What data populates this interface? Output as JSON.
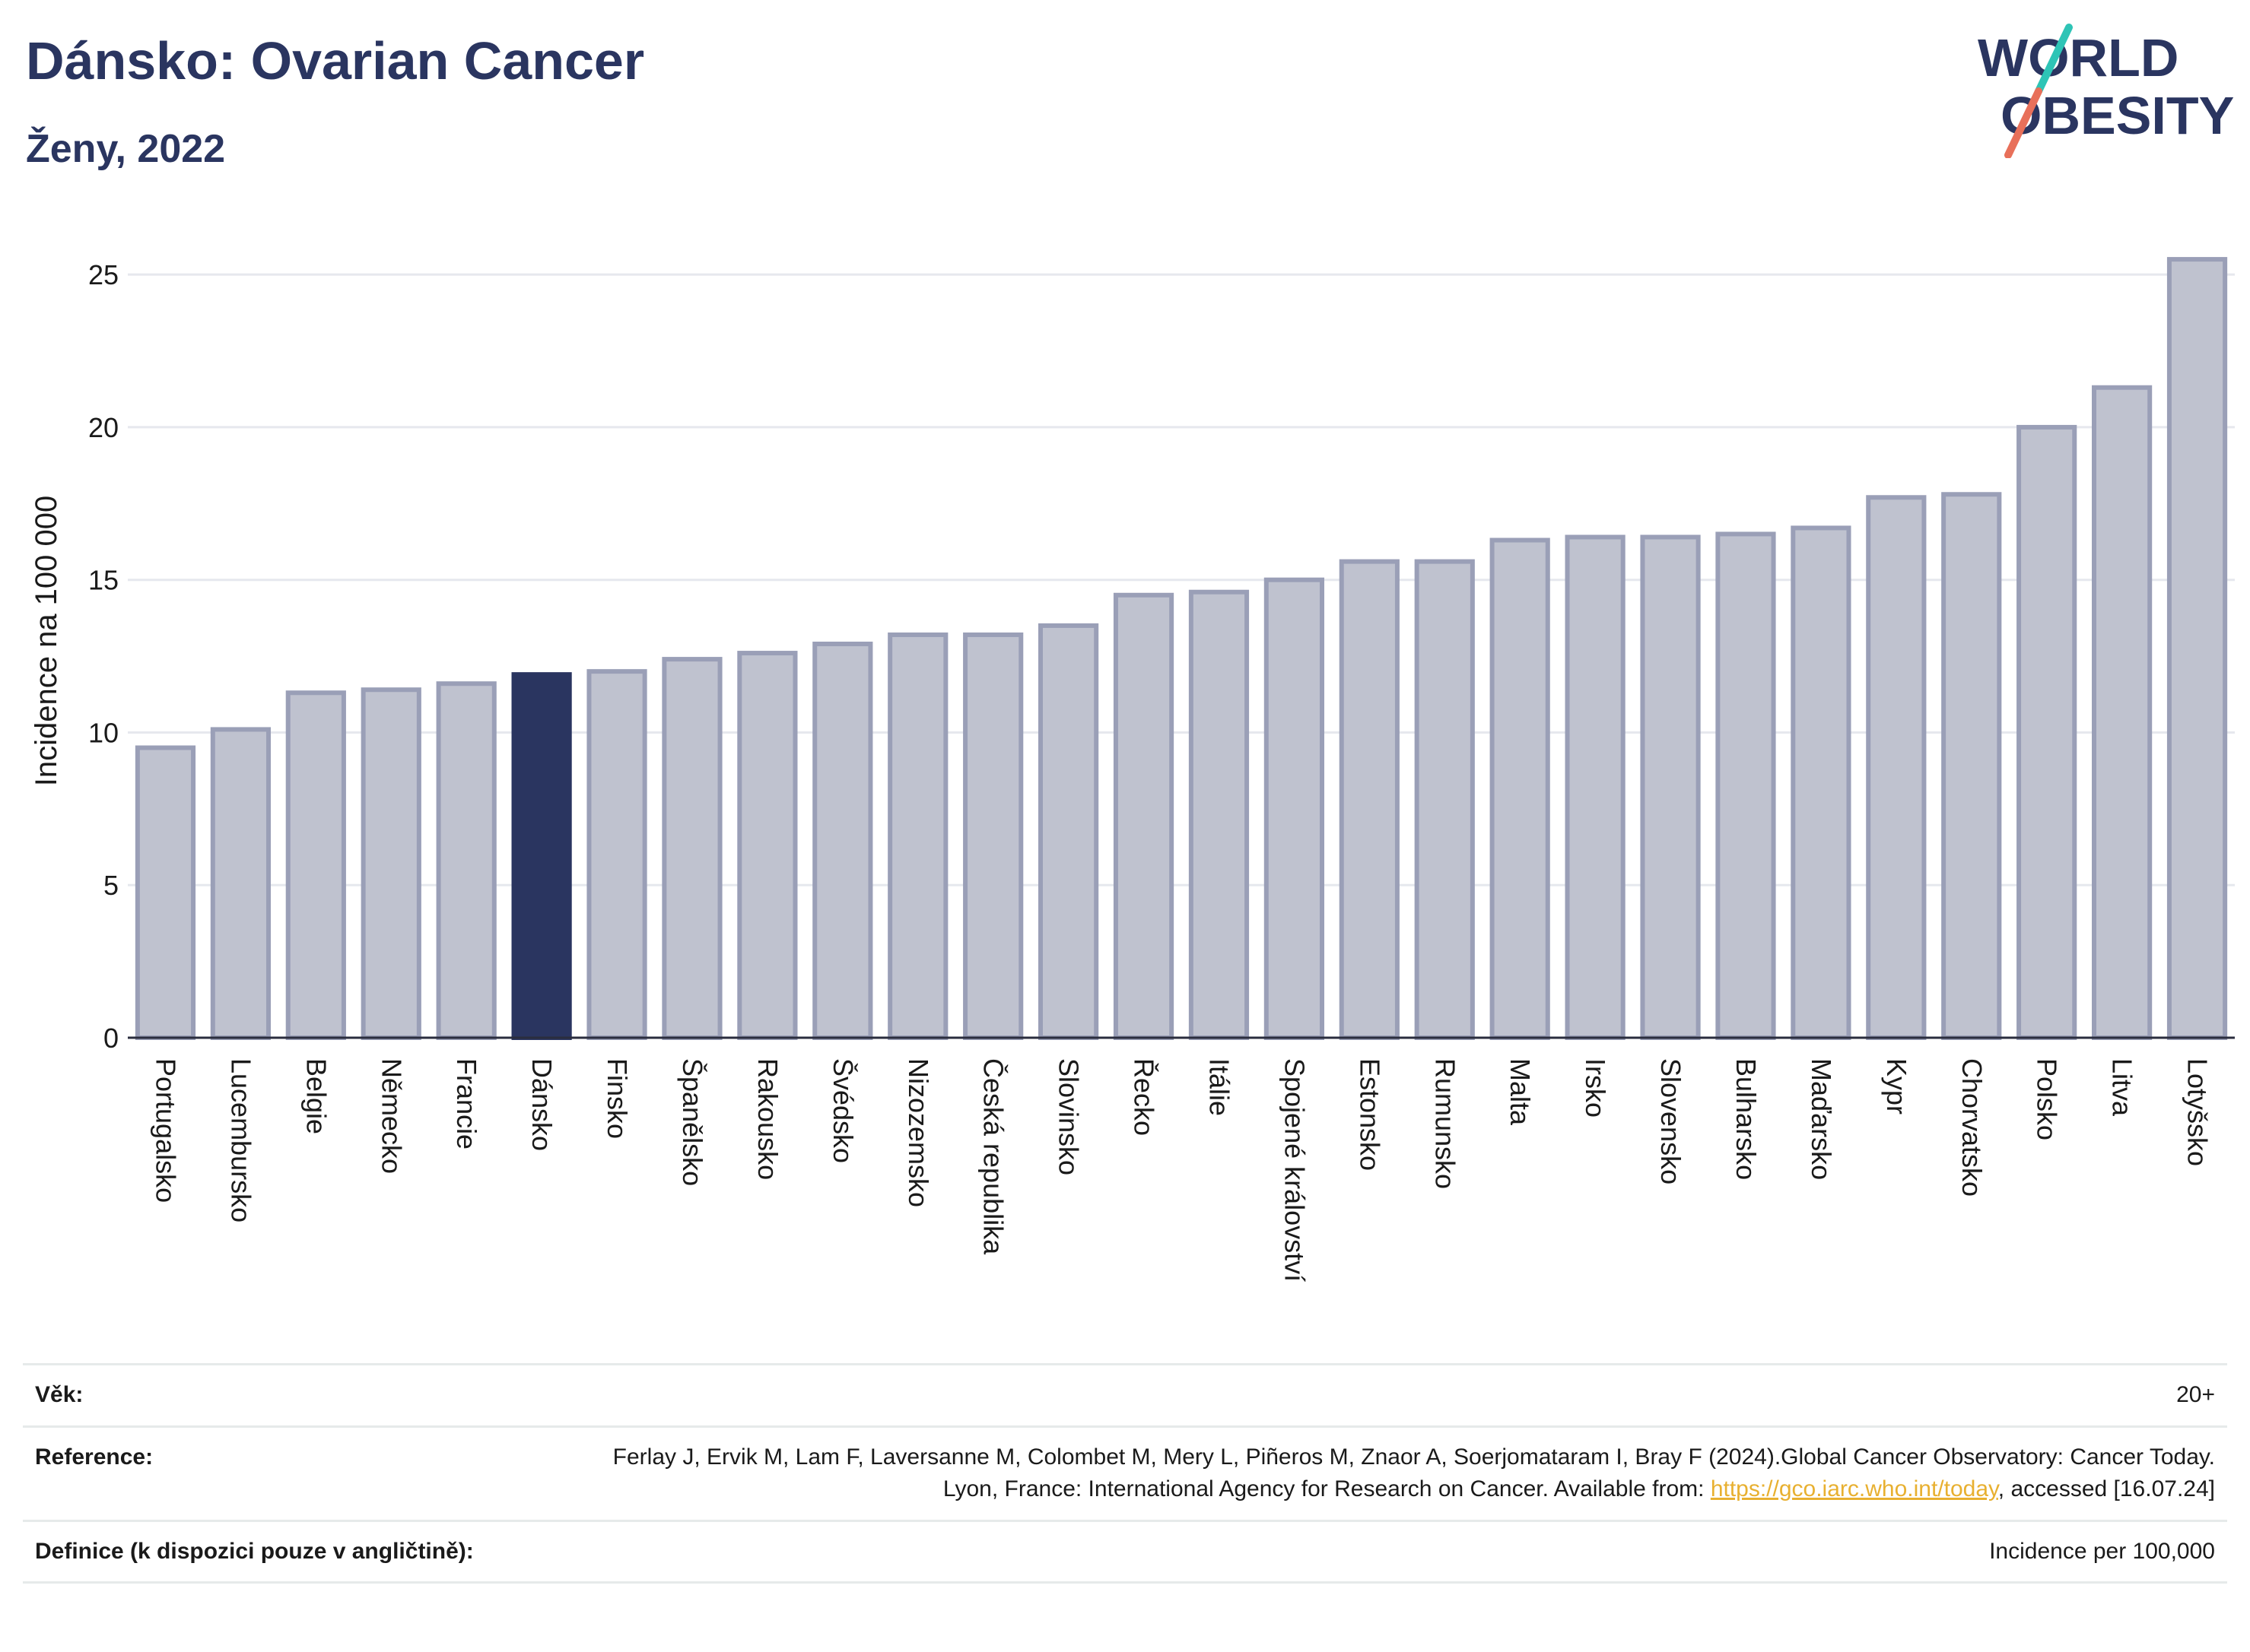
{
  "header": {
    "title": "Dánsko: Ovarian Cancer",
    "subtitle": "Ženy, 2022"
  },
  "logo": {
    "line1": "WORLD",
    "line2": "OBESITY",
    "colors": {
      "text": "#2a3560",
      "slash_top": "#2ec4b6",
      "slash_bottom": "#e8705a"
    }
  },
  "chart_data": {
    "type": "bar",
    "title": "Dánsko: Ovarian Cancer",
    "subtitle": "Ženy, 2022",
    "xlabel": "",
    "ylabel": "Incidence na 100 000",
    "ylim": [
      0,
      26
    ],
    "yticks": [
      0,
      5,
      10,
      15,
      20,
      25
    ],
    "grid": true,
    "highlight": "Dánsko",
    "colors": {
      "bar": "#bfc2cf",
      "bar_border": "#9a9fb7",
      "highlight": "#2a3560",
      "grid": "#e6e8ee"
    },
    "categories": [
      "Portugalsko",
      "Lucembursko",
      "Belgie",
      "Německo",
      "Francie",
      "Dánsko",
      "Finsko",
      "Španělsko",
      "Rakousko",
      "Švédsko",
      "Nizozemsko",
      "Česká republika",
      "Slovinsko",
      "Řecko",
      "Itálie",
      "Spojené království",
      "Estonsko",
      "Rumunsko",
      "Malta",
      "Irsko",
      "Slovensko",
      "Bulharsko",
      "Maďarsko",
      "Kypr",
      "Chorvatsko",
      "Polsko",
      "Litva",
      "Lotyšsko"
    ],
    "values": [
      9.5,
      10.1,
      11.3,
      11.4,
      11.6,
      11.9,
      12.0,
      12.4,
      12.6,
      12.9,
      13.2,
      13.2,
      13.5,
      14.5,
      14.6,
      15.0,
      15.6,
      15.6,
      16.3,
      16.4,
      16.4,
      16.5,
      16.7,
      17.7,
      17.8,
      20.0,
      21.3,
      25.5
    ]
  },
  "info": {
    "age_label": "Věk:",
    "age_value": "20+",
    "reference_label": "Reference:",
    "reference_text_1": "Ferlay J, Ervik M, Lam F, Laversanne M, Colombet M, Mery L, Piñeros M, Znaor A, Soerjomataram I, Bray F (2024).Global Cancer Observatory: Cancer Today. Lyon, France: International Agency for Research on Cancer. Available from: ",
    "reference_link": "https://gco.iarc.who.int/today",
    "reference_text_2": ", accessed [16.07.24]",
    "definition_label": "Definice (k dispozici pouze v angličtině):",
    "definition_value": "Incidence per 100,000"
  }
}
